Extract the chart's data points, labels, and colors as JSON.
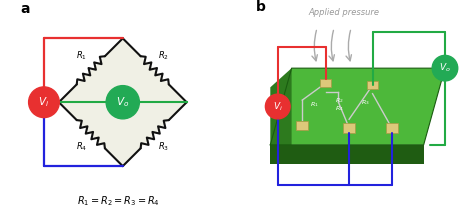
{
  "panel_a_label": "a",
  "panel_b_label": "b",
  "bg_color": "#ffffff",
  "diamond_bg": "#e8e8d8",
  "wire_color_red": "#e83030",
  "wire_color_blue": "#2222dd",
  "wire_color_green": "#22aa44",
  "Vi_circle_color": "#e83030",
  "Vo_circle_color": "#22aa55",
  "Vi_text": "$V_i$",
  "Vo_text": "$V_o$",
  "R1_text": "$R_1$",
  "R2_text": "$R_2$",
  "R3_text": "$R_3$",
  "R4_text": "$R_4$",
  "equation_text": "$R_1 = R_2 = R_3 = R_4$",
  "applied_pressure_text": "Applied pressure",
  "board_green_top": "#4db83a",
  "board_green_left": "#2d7a1e",
  "board_green_bottom": "#1f5c12",
  "pad_color": "#ddc87a",
  "pad_edge": "#aa9944",
  "trace_color": "#cccccc",
  "arrow_color": "#aaaaaa",
  "label_color": "#555555"
}
